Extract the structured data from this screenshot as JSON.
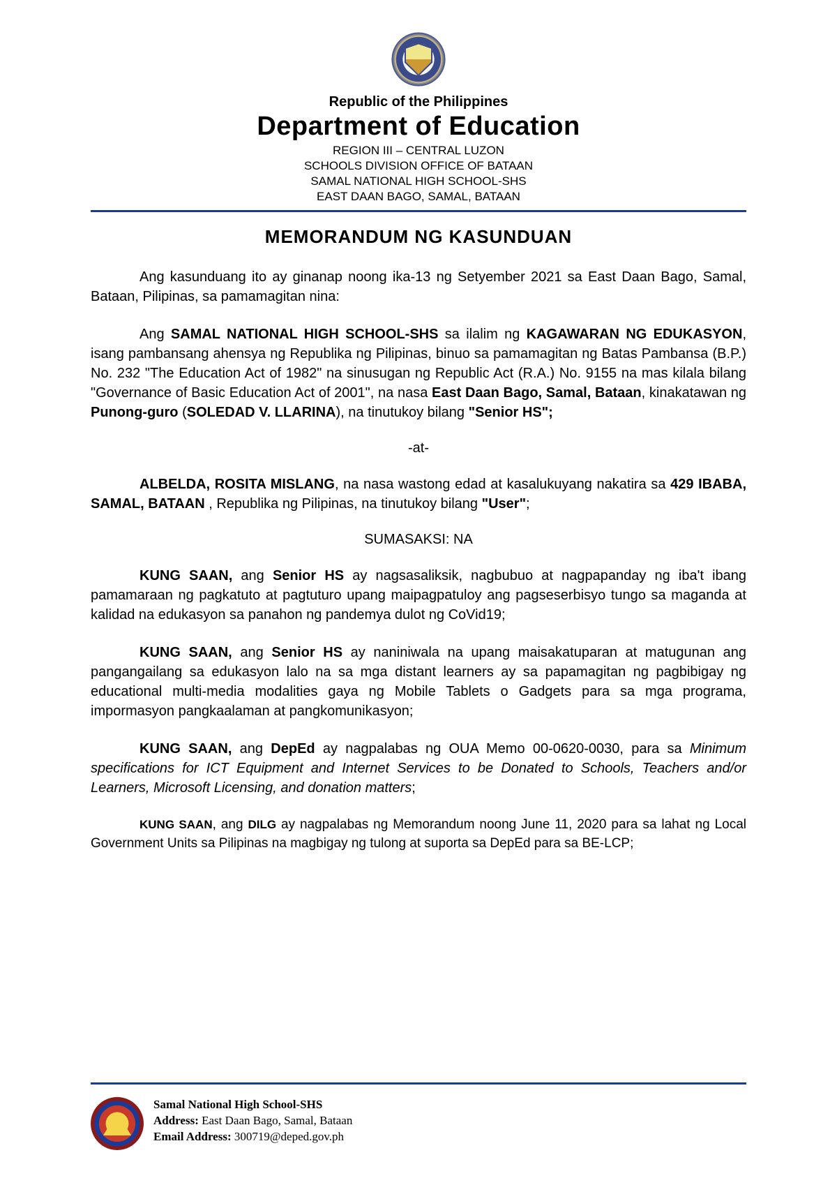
{
  "header": {
    "republic": "Republic of the Philippines",
    "department": "Department of Education",
    "region": "REGION III – CENTRAL LUZON",
    "division": "SCHOOLS DIVISION OFFICE OF BATAAN",
    "school": "SAMAL NATIONAL HIGH SCHOOL-SHS",
    "address": "EAST DAAN BAGO, SAMAL, BATAAN"
  },
  "title": "MEMORANDUM NG KASUNDUAN",
  "p_intro": "Ang kasunduang ito ay ginanap noong ika-13 ng Setyember 2021 sa East Daan Bago, Samal, Bataan, Pilipinas, sa pamamagitan nina:",
  "p_school": {
    "t1": "Ang ",
    "b1": "SAMAL NATIONAL HIGH SCHOOL-SHS",
    "t2": " sa ilalim ng ",
    "b2": "KAGAWARAN NG EDUKASYON",
    "t3": ", isang pambansang ahensya ng Republika ng Pilipinas, binuo sa pamamagitan ng Batas Pambansa (B.P.) No. 232 \"The Education Act of 1982\" na sinusugan ng Republic Act (R.A.) No. 9155 na mas kilala bilang \"Governance of Basic Education Act of 2001\", na nasa ",
    "b3": "East Daan Bago, Samal, Bataan",
    "t4": ", kinakatawan ng ",
    "b4": "Punong-guro",
    "t5": " (",
    "b5": "SOLEDAD V. LLARINA",
    "t6": "),",
    "b6": " ",
    "t7": "na tinutukoy bilang ",
    "b7": "\"Senior HS\";"
  },
  "at": "-at-",
  "p_user": {
    "b1": "ALBELDA, ROSITA MISLANG",
    "t1": ", na nasa wastong edad at kasalukuyang nakatira sa ",
    "b2": "429 IBABA, SAMAL, BATAAN ",
    "t2": ",  Republika ng Pilipinas, na tinutukoy bilang ",
    "b3": "\"User\"",
    "t3": ";"
  },
  "sumasaksi": "SUMASAKSI: NA",
  "p_ks1": {
    "b1": "KUNG SAAN,",
    "t1": " ang ",
    "b2": "Senior HS",
    "t2": " ay nagsasaliksik, nagbubuo at nagpapanday ng iba't ibang pamamaraan ng pagkatuto at pagtuturo upang maipagpatuloy ang pagseserbisyo tungo sa maganda at kalidad na edukasyon sa panahon ng pandemya dulot ng CoVid19;"
  },
  "p_ks2": {
    "b1": "KUNG SAAN,",
    "t1": " ang ",
    "b2": "Senior HS",
    "t2": " ay naniniwala na upang maisakatuparan at matugunan ang pangangailang sa edukasyon lalo na sa mga distant learners ay sa papamagitan ng pagbibigay ng educational multi-media modalities gaya ng Mobile Tablets  o Gadgets para sa mga programa, impormasyon pangkaalaman at pangkomunikasyon;"
  },
  "p_ks3": {
    "b1": "KUNG SAAN,",
    "t1": " ang ",
    "b2": "DepEd",
    "t2": " ay nagpalabas ng OUA Memo 00-0620-0030, para sa ",
    "i1": "Minimum specifications for ICT Equipment and Internet Services to be Donated to Schools, Teachers and/or Learners, Microsoft Licensing, and donation matters",
    "t3": ";"
  },
  "p_ks4": {
    "b1": "KUNG SAAN",
    "t1": ", ang ",
    "b2": "DILG",
    "t2": " ay nagpalabas ng Memorandum noong June 11, 2020 para sa lahat ng Local Government Units sa Pilipinas na magbigay ng tulong at suporta sa DepEd para sa BE-LCP;"
  },
  "footer": {
    "school": "Samal National High School-SHS",
    "address_label": "Address:",
    "address_value": " East Daan Bago, Samal, Bataan",
    "email_label": "Email Address:",
    "email_value": " 300719@deped.gov.ph"
  }
}
